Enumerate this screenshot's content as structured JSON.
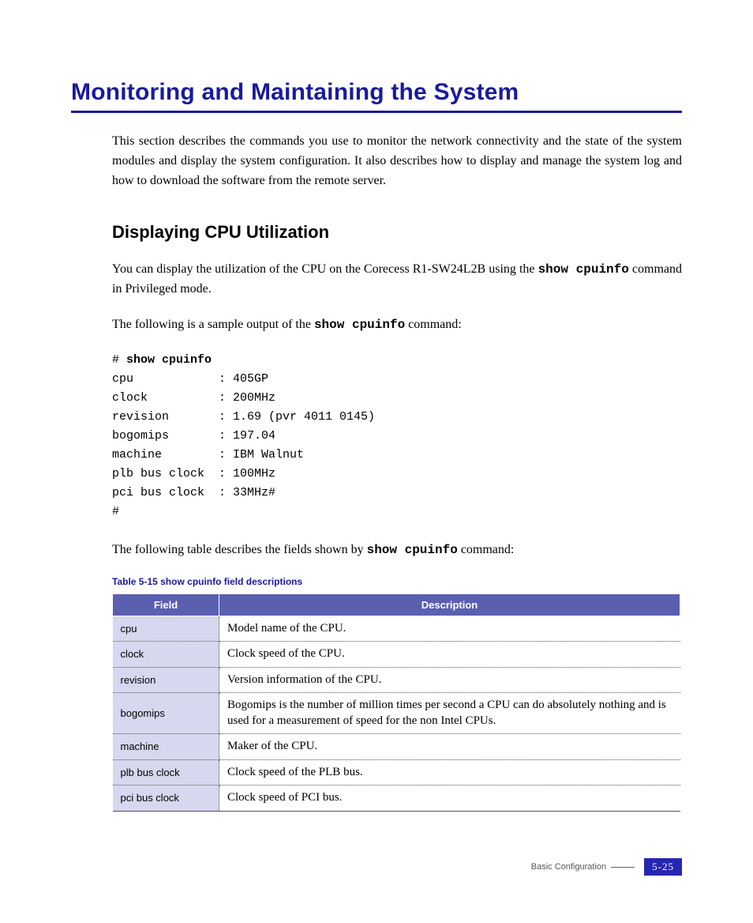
{
  "colors": {
    "title_blue": "#1a1a9e",
    "rule_blue": "#1a1a9e",
    "table_header_bg": "#5a5fb0",
    "table_header_fg": "#ffffff",
    "field_cell_bg": "#d7d7ef",
    "page_badge_bg": "#2626b3",
    "page_badge_fg": "#ffffff",
    "body_text": "#000000",
    "footer_text": "#555555"
  },
  "typography": {
    "title_font": "Arial, Helvetica, sans-serif",
    "body_font": "Georgia, 'Times New Roman', serif",
    "code_font": "'Courier New', monospace",
    "title_size_pt": 22,
    "section_title_size_pt": 16,
    "body_size_pt": 12,
    "code_size_pt": 11,
    "caption_size_pt": 9
  },
  "title": "Monitoring and Maintaining the System",
  "intro": "This section describes the commands you use to monitor the network connectivity and the state of the system modules and display the system configuration. It also describes how to display and manage the system log and how to download the software from the remote server.",
  "section": {
    "heading": "Displaying CPU Utilization",
    "para1_pre": "You can display the utilization of the CPU on the Corecess R1-SW24L2B using ",
    "para1_the": "the ",
    "para1_cmd": "show cpuinfo",
    "para1_post": " command in Privileged mode.",
    "para2_pre": "The following is a sample output of the ",
    "para2_cmd": "show cpuinfo",
    "para2_post": " command:",
    "para3_pre": "The following table describes the fields shown by ",
    "para3_cmd": "show cpuinfo",
    "para3_post": " command:"
  },
  "code": {
    "prompt": "# ",
    "command": "show cpuinfo",
    "lines": [
      "cpu            : 405GP",
      "clock          : 200MHz",
      "revision       : 1.69 (pvr 4011 0145)",
      "bogomips       : 197.04",
      "machine        : IBM Walnut",
      "plb bus clock  : 100MHz",
      "pci bus clock  : 33MHz#",
      "#"
    ]
  },
  "table": {
    "caption": "Table 5-15    show cpuinfo field descriptions",
    "head_field": "Field",
    "head_desc": "Description",
    "rows": [
      {
        "field": "cpu",
        "desc": "Model name of the CPU."
      },
      {
        "field": "clock",
        "desc": "Clock speed of the CPU."
      },
      {
        "field": "revision",
        "desc": "Version information of the CPU."
      },
      {
        "field": "bogomips",
        "desc": "Bogomips is the number of million times per second a CPU can do absolutely nothing and is used for a measurement of speed for the non Intel CPUs."
      },
      {
        "field": "machine",
        "desc": "Maker of the CPU."
      },
      {
        "field": "plb bus clock",
        "desc": "Clock speed of the PLB bus."
      },
      {
        "field": "pci bus clock",
        "desc": "Clock speed of PCI bus."
      }
    ]
  },
  "footer": {
    "label": "Basic Configuration",
    "page": "5-25"
  }
}
